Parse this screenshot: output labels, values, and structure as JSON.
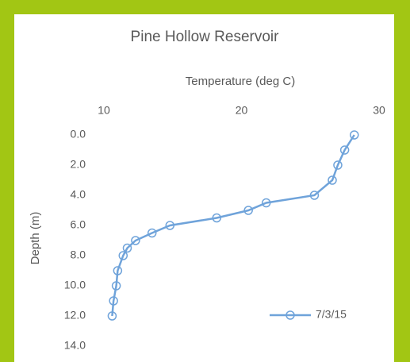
{
  "chart_data": {
    "type": "line",
    "title": "Pine Hollow Reservoir",
    "x_label": "Temperature (deg C)",
    "y_label": "Depth (m)",
    "xlim": [
      10,
      30
    ],
    "xticks": [
      10,
      20,
      30
    ],
    "x_axis_position": "top",
    "ylim": [
      0,
      14
    ],
    "y_inverted": true,
    "yticks": [
      {
        "value": 0,
        "label": "0.0"
      },
      {
        "value": 2,
        "label": "2.0"
      },
      {
        "value": 4,
        "label": "4.0"
      },
      {
        "value": 6,
        "label": "6.0"
      },
      {
        "value": 8,
        "label": "8.0"
      },
      {
        "value": 10,
        "label": "10.0"
      },
      {
        "value": 12,
        "label": "12.0"
      },
      {
        "value": 14,
        "label": "14.0"
      }
    ],
    "grid": false,
    "legend": "lower right",
    "series": [
      {
        "name": "7/3/15",
        "color": "#6fa3da",
        "x": [
          28.2,
          27.5,
          27.0,
          26.6,
          25.3,
          21.8,
          20.5,
          18.2,
          14.8,
          13.5,
          12.3,
          11.7,
          11.4,
          11.0,
          10.9,
          10.7,
          10.6
        ],
        "values": [
          0,
          1,
          2,
          3,
          4,
          4.5,
          5,
          5.5,
          6,
          6.5,
          7,
          7.5,
          8,
          9,
          10,
          11,
          12
        ]
      }
    ]
  }
}
